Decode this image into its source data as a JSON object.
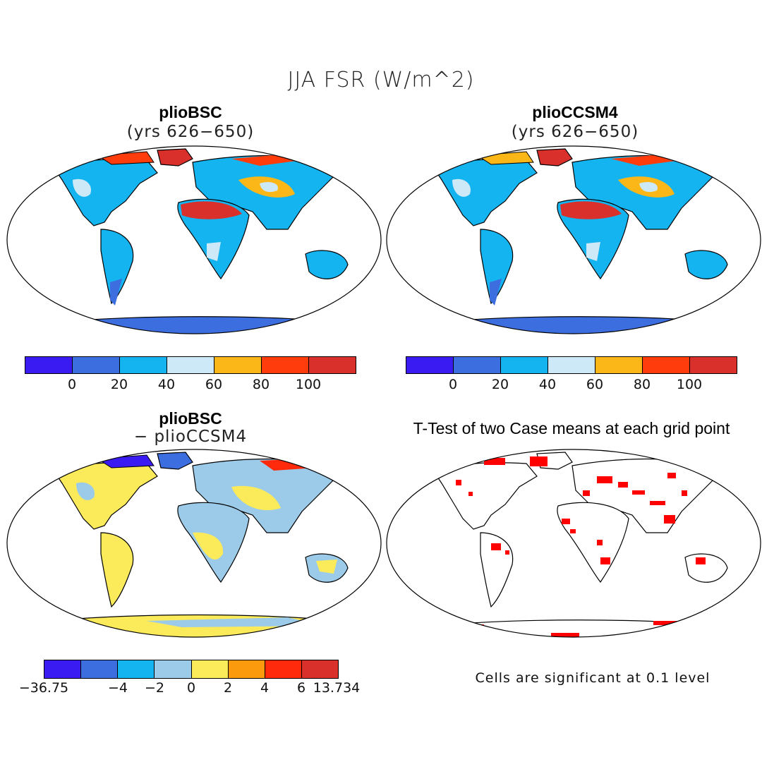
{
  "title": "JJA FSR (W/m^2)",
  "panels": [
    {
      "title": "plioBSC",
      "subtitle": "(yrs 626−650)"
    },
    {
      "title": "plioCCSM4",
      "subtitle": "(yrs 626−650)"
    },
    {
      "title": "plioBSC",
      "subtitle": "− plioCCSM4"
    },
    {
      "title": "T-Test of two Case means at each grid point",
      "subtitle": ""
    }
  ],
  "colorbar_top": {
    "colors": [
      "#3a1cf2",
      "#3d6ee0",
      "#14b4f0",
      "#cde8f6",
      "#fbb618",
      "#ff3c0c",
      "#d9302c"
    ],
    "labels": [
      "0",
      "20",
      "40",
      "60",
      "80",
      "100"
    ]
  },
  "colorbar_diff": {
    "colors": [
      "#3a1cf2",
      "#3d6ee0",
      "#14b4f0",
      "#9ccbea",
      "#fbea5a",
      "#fb9a0c",
      "#ff2a0c",
      "#d9302c"
    ],
    "labels": [
      "−36.75",
      "−4",
      "−2",
      "0",
      "2",
      "4",
      "6",
      "13.734"
    ]
  },
  "note": "Cells are significant at 0.1 level",
  "colors": {
    "land_low": "#3d6ee0",
    "land_mid": "#14b4f0",
    "land_light": "#cde8f6",
    "land_orange": "#fbb618",
    "land_red": "#d9302c",
    "diff_light_blue": "#9ccbea",
    "diff_yellow": "#fbea5a",
    "sig_red": "#ff0000"
  }
}
